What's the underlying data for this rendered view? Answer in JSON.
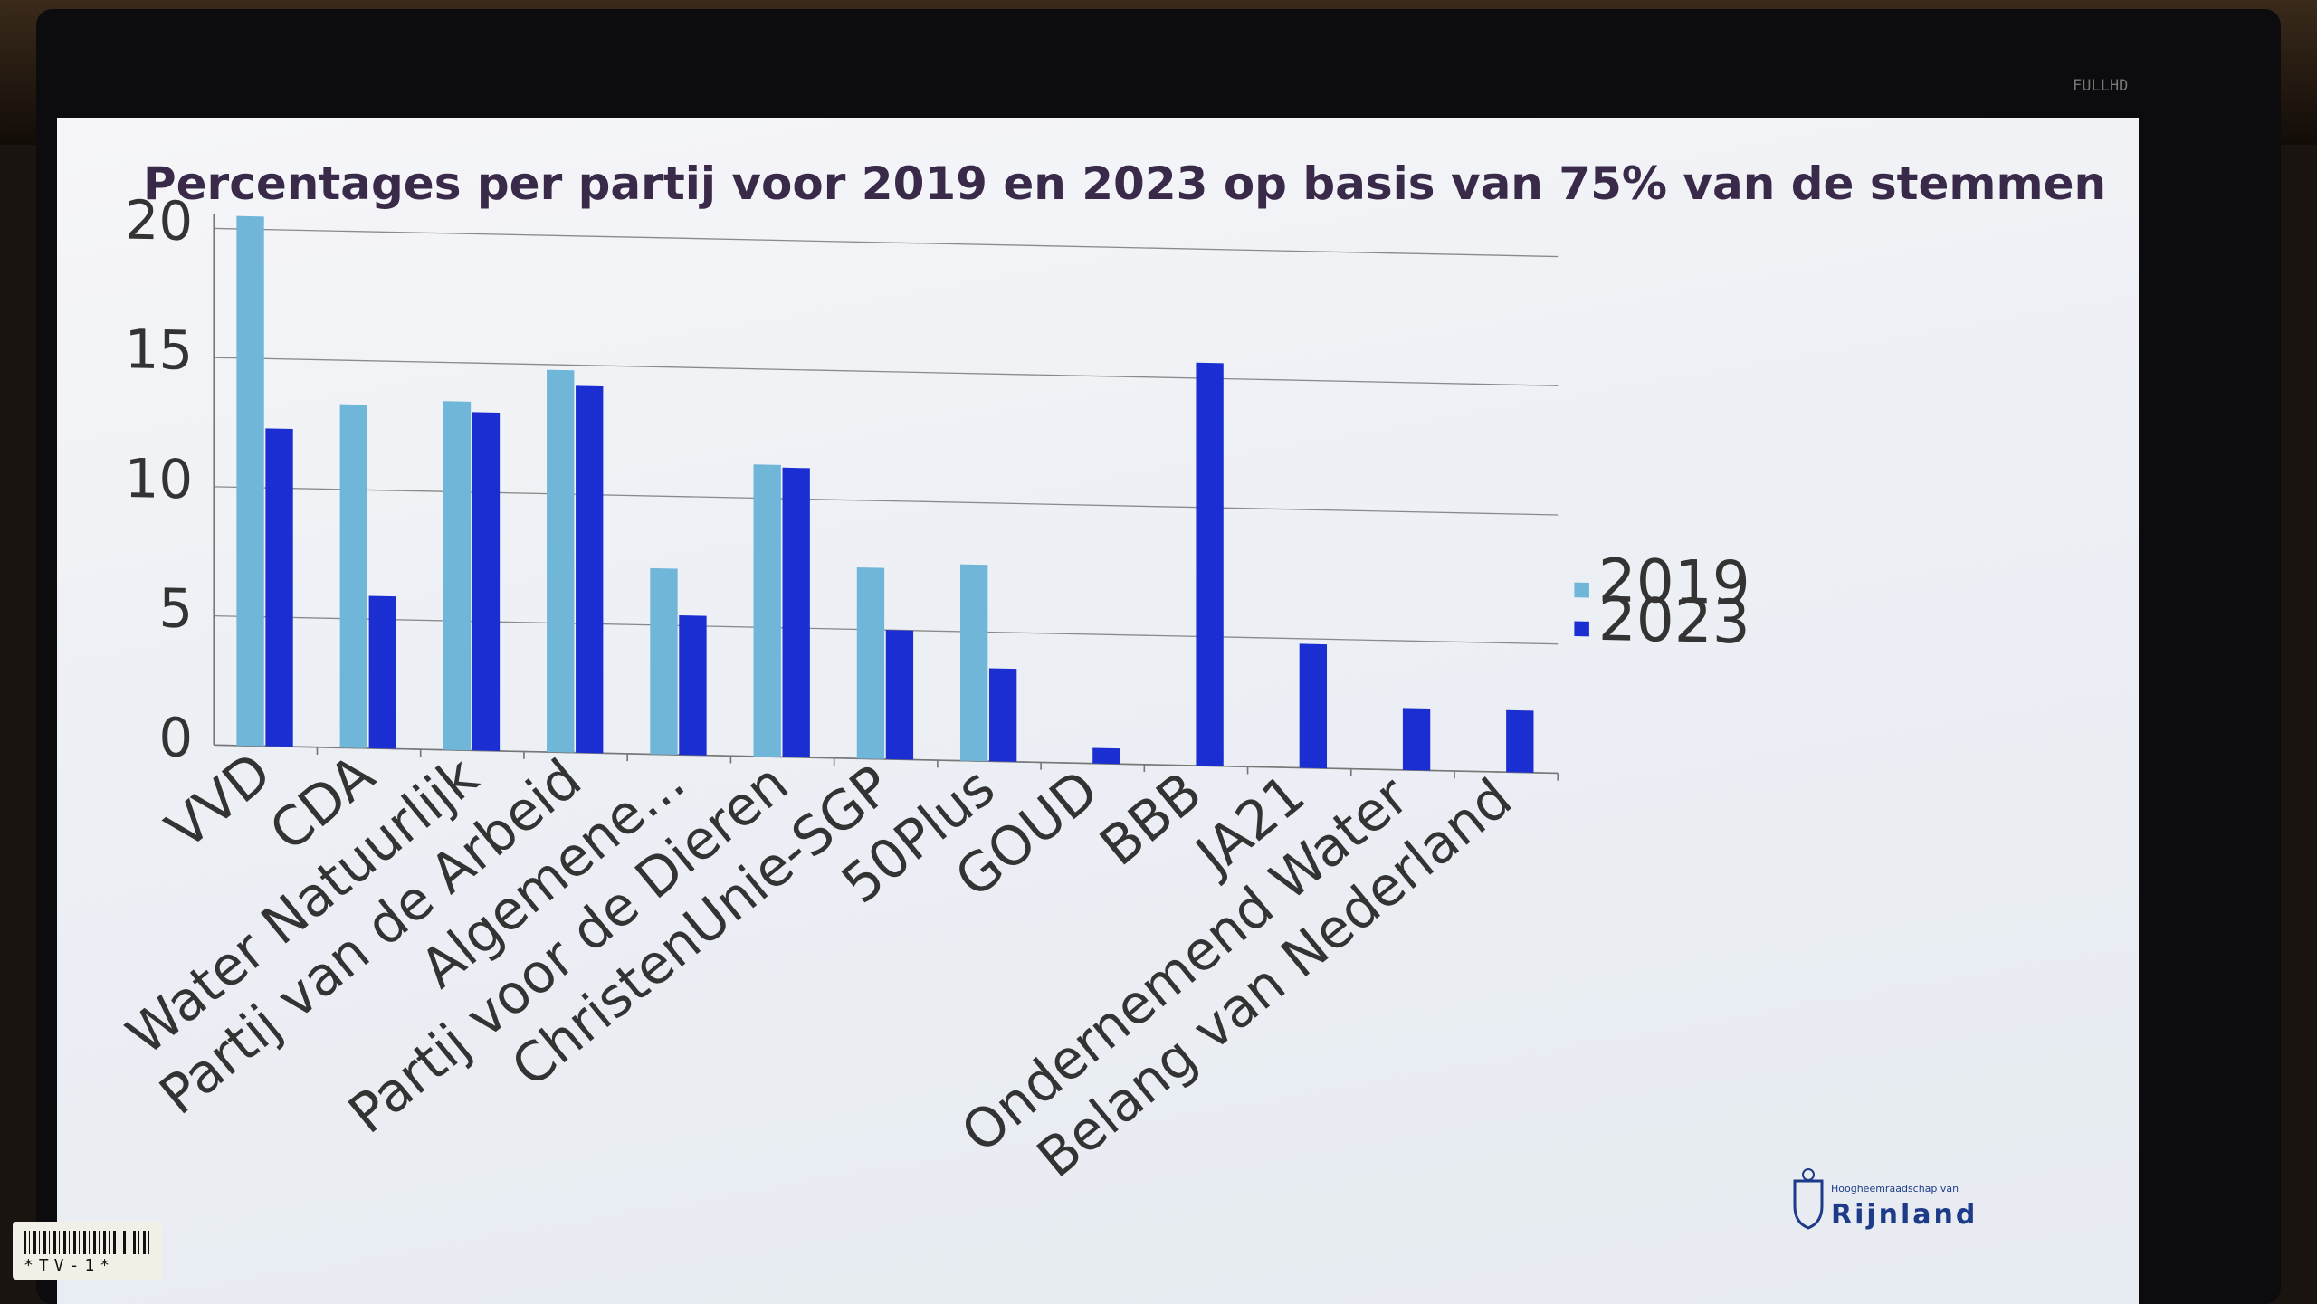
{
  "chart_data": {
    "type": "bar",
    "title": "Percentages per partij voor 2019 en 2023 op basis van 75% van de stemmen",
    "categories": [
      "VVD",
      "CDA",
      "Water Natuurlijk",
      "Partij van de Arbeid",
      "Algemene...",
      "Partij voor de Dieren",
      "ChristenUnie-SGP",
      "50Plus",
      "GOUD",
      "BBB",
      "JA21",
      "Ondernemend Water",
      "Belang van Nederland"
    ],
    "series": [
      {
        "name": "2019",
        "color": "#6fb6d8",
        "values": [
          20.5,
          13.3,
          13.5,
          14.8,
          7.2,
          11.3,
          7.4,
          7.6,
          null,
          null,
          null,
          null,
          null
        ]
      },
      {
        "name": "2023",
        "color": "#1b2ed1",
        "values": [
          12.3,
          5.9,
          13.1,
          14.2,
          5.4,
          11.2,
          5.0,
          3.6,
          0.6,
          15.6,
          4.8,
          2.4,
          2.4
        ]
      }
    ],
    "ylim": [
      0,
      20
    ],
    "yticks": [
      "0",
      "5",
      "10",
      "15",
      "20"
    ],
    "grid": true,
    "legend_position": "right"
  },
  "tv": {
    "model_label": "FULLHD",
    "sticker_text": "*TV-1*"
  },
  "logo": {
    "small_text": "Hoogheemraadschap van",
    "name": "Rijnland"
  }
}
